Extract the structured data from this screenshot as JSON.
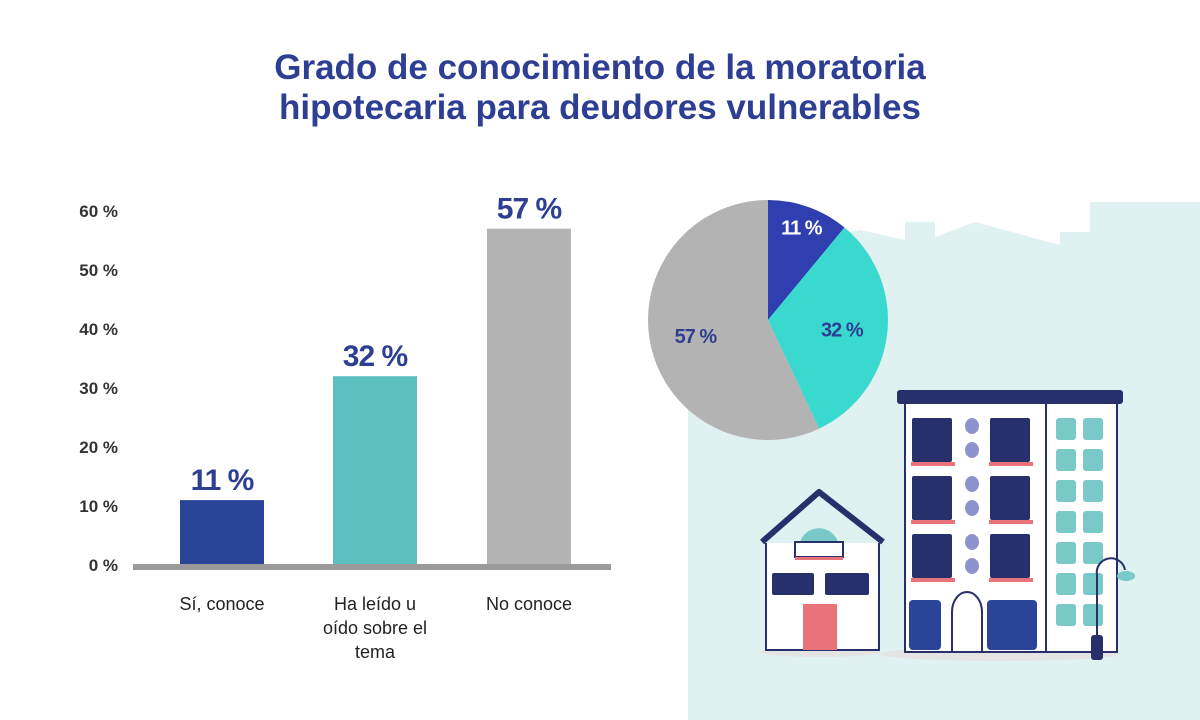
{
  "chart_data": [
    {
      "type": "bar",
      "title": "Grado de conocimiento de la moratoria hipotecaria para deudores vulnerables",
      "title_lines": [
        "Grado de conocimiento de la moratoria",
        "hipotecaria para deudores vulnerables"
      ],
      "categories": [
        [
          "Sí, conoce"
        ],
        [
          "Ha leído u",
          "oído sobre el",
          "tema"
        ],
        [
          "No conoce"
        ]
      ],
      "values": [
        11,
        32,
        57
      ],
      "data_labels": [
        "11 %",
        "32 %",
        "57 %"
      ],
      "colors": [
        "#2a4598",
        "#5dbfbf",
        "#b3b3b3"
      ],
      "yticks": [
        0,
        10,
        20,
        30,
        40,
        50,
        60
      ],
      "ytick_labels": [
        "0 %",
        "10 %",
        "20 %",
        "30 %",
        "40 %",
        "50 %",
        "60 %"
      ],
      "ylim": [
        0,
        60
      ],
      "grid": false
    },
    {
      "type": "pie",
      "values": [
        11,
        32,
        57
      ],
      "labels": [
        "11 %",
        "32 %",
        "57 %"
      ],
      "colors": [
        "#2f3fb0",
        "#3ad9cf",
        "#b3b3b3"
      ],
      "label_colors": [
        "#ffffff",
        "#2e3f93",
        "#2e3f93"
      ]
    }
  ],
  "colors": {
    "title": "#2e3f93",
    "background_panel": "#dff1f1",
    "axis": "#9a9a9a"
  }
}
